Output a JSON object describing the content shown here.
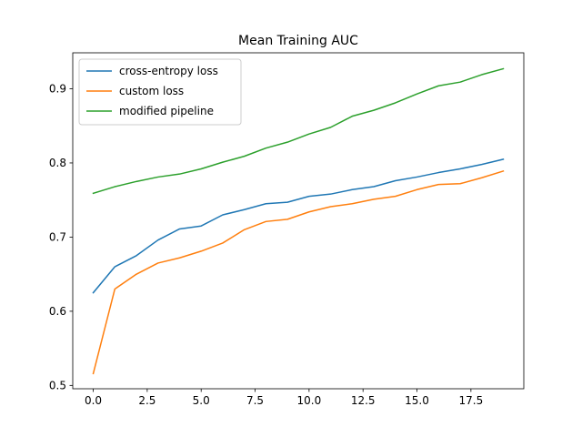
{
  "chart_data": {
    "type": "line",
    "title": "Mean Training AUC",
    "xlabel": "",
    "ylabel": "",
    "x": [
      0,
      1,
      2,
      3,
      4,
      5,
      6,
      7,
      8,
      9,
      10,
      11,
      12,
      13,
      14,
      15,
      16,
      17,
      18,
      19
    ],
    "xlim": [
      -0.95,
      19.95
    ],
    "ylim": [
      0.4955,
      0.9485
    ],
    "xticks": [
      0.0,
      2.5,
      5.0,
      7.5,
      10.0,
      12.5,
      15.0,
      17.5
    ],
    "xtick_labels": [
      "0.0",
      "2.5",
      "5.0",
      "7.5",
      "10.0",
      "12.5",
      "15.0",
      "17.5"
    ],
    "yticks": [
      0.5,
      0.6,
      0.7,
      0.8,
      0.9
    ],
    "ytick_labels": [
      "0.5",
      "0.6",
      "0.7",
      "0.8",
      "0.9"
    ],
    "grid": false,
    "legend_position": "top-left",
    "series": [
      {
        "name": "cross-entropy loss",
        "color": "#1f77b4",
        "values": [
          0.625,
          0.66,
          0.675,
          0.696,
          0.711,
          0.715,
          0.73,
          0.737,
          0.745,
          0.747,
          0.755,
          0.758,
          0.764,
          0.768,
          0.776,
          0.781,
          0.787,
          0.792,
          0.798,
          0.805
        ]
      },
      {
        "name": "custom loss",
        "color": "#ff7f0e",
        "values": [
          0.516,
          0.63,
          0.65,
          0.665,
          0.672,
          0.681,
          0.692,
          0.71,
          0.721,
          0.724,
          0.734,
          0.741,
          0.745,
          0.751,
          0.755,
          0.764,
          0.771,
          0.772,
          0.78,
          0.789
        ]
      },
      {
        "name": "modified pipeline",
        "color": "#2ca02c",
        "values": [
          0.759,
          0.768,
          0.775,
          0.781,
          0.785,
          0.792,
          0.801,
          0.809,
          0.82,
          0.828,
          0.839,
          0.848,
          0.863,
          0.871,
          0.881,
          0.893,
          0.904,
          0.909,
          0.919,
          0.927
        ]
      }
    ]
  }
}
